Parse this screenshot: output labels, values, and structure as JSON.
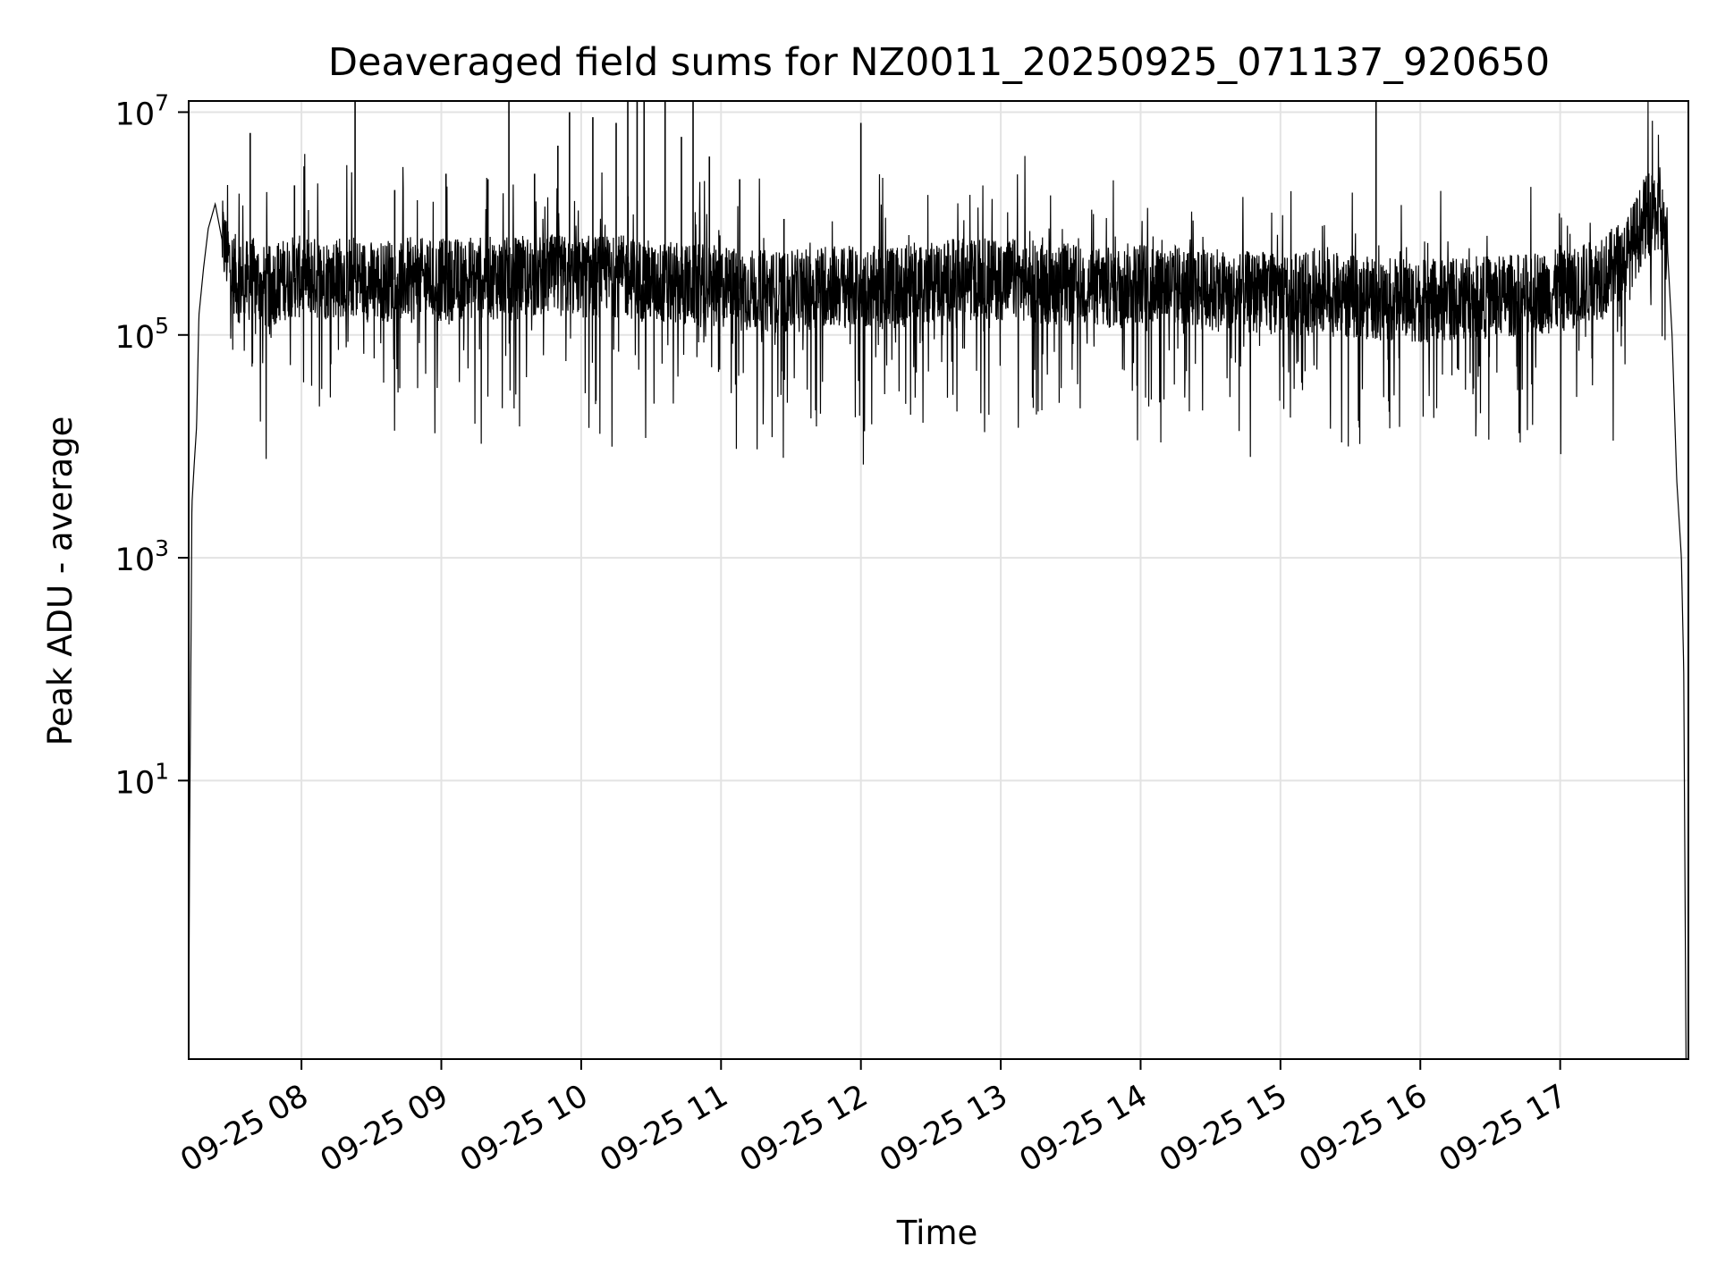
{
  "chart_data": {
    "type": "line",
    "title": "Deaveraged field sums for NZ0011_20250925_071137_920650",
    "xlabel": "Time",
    "ylabel": "Peak ADU - average",
    "yscale": "log",
    "grid": true,
    "line_color": "#000000",
    "xlim": [
      "2025-09-25T07:11:37",
      "2025-09-25T17:55:00"
    ],
    "ylim_exp10": [
      -1.5,
      7.1
    ],
    "x_ticks": [
      {
        "t": "2025-09-25T08:00",
        "label": "09-25 08"
      },
      {
        "t": "2025-09-25T09:00",
        "label": "09-25 09"
      },
      {
        "t": "2025-09-25T10:00",
        "label": "09-25 10"
      },
      {
        "t": "2025-09-25T11:00",
        "label": "09-25 11"
      },
      {
        "t": "2025-09-25T12:00",
        "label": "09-25 12"
      },
      {
        "t": "2025-09-25T13:00",
        "label": "09-25 13"
      },
      {
        "t": "2025-09-25T14:00",
        "label": "09-25 14"
      },
      {
        "t": "2025-09-25T15:00",
        "label": "09-25 15"
      },
      {
        "t": "2025-09-25T16:00",
        "label": "09-25 16"
      },
      {
        "t": "2025-09-25T17:00",
        "label": "09-25 17"
      }
    ],
    "y_ticks": [
      {
        "value": 10,
        "base": "10",
        "exp": "1"
      },
      {
        "value": 1000,
        "base": "10",
        "exp": "3"
      },
      {
        "value": 100000,
        "base": "10",
        "exp": "5"
      },
      {
        "value": 10000000,
        "base": "10",
        "exp": "7"
      }
    ],
    "series": [
      {
        "x": [
          "2025-09-25T07:11:37",
          "2025-09-25T07:12:00",
          "2025-09-25T07:12:30",
          "2025-09-25T07:13:00",
          "2025-09-25T07:14:00",
          "2025-09-25T07:15:00",
          "2025-09-25T07:16:00",
          "2025-09-25T07:18:00",
          "2025-09-25T07:20:00",
          "2025-09-25T07:23:00",
          "2025-09-25T07:26:00",
          "2025-09-25T07:30:00",
          "2025-09-25T07:33:00",
          "2025-09-25T07:36:00",
          "2025-09-25T07:40:00",
          "2025-09-25T07:45:00",
          "2025-09-25T07:50:00",
          "2025-09-25T07:55:00",
          "2025-09-25T08:00:00",
          "2025-09-25T08:10:00",
          "2025-09-25T08:20:00",
          "2025-09-25T08:30:00",
          "2025-09-25T08:45:00",
          "2025-09-25T09:00:00",
          "2025-09-25T09:15:00",
          "2025-09-25T09:30:00",
          "2025-09-25T09:45:00",
          "2025-09-25T10:00:00",
          "2025-09-25T10:15:00",
          "2025-09-25T10:30:00",
          "2025-09-25T10:45:00",
          "2025-09-25T11:00:00",
          "2025-09-25T11:15:00",
          "2025-09-25T11:30:00",
          "2025-09-25T11:45:00",
          "2025-09-25T12:00:00",
          "2025-09-25T12:15:00",
          "2025-09-25T12:30:00",
          "2025-09-25T12:45:00",
          "2025-09-25T13:00:00",
          "2025-09-25T13:15:00",
          "2025-09-25T13:30:00",
          "2025-09-25T13:45:00",
          "2025-09-25T14:00:00",
          "2025-09-25T14:15:00",
          "2025-09-25T14:30:00",
          "2025-09-25T14:45:00",
          "2025-09-25T15:00:00",
          "2025-09-25T15:15:00",
          "2025-09-25T15:30:00",
          "2025-09-25T15:45:00",
          "2025-09-25T16:00:00",
          "2025-09-25T16:15:00",
          "2025-09-25T16:30:00",
          "2025-09-25T16:45:00",
          "2025-09-25T17:00:00",
          "2025-09-25T17:10:00",
          "2025-09-25T17:20:00",
          "2025-09-25T17:28:00",
          "2025-09-25T17:32:00",
          "2025-09-25T17:36:00",
          "2025-09-25T17:40:00",
          "2025-09-25T17:43:00",
          "2025-09-25T17:46:00",
          "2025-09-25T17:48:00",
          "2025-09-25T17:50:00",
          "2025-09-25T17:52:00",
          "2025-09-25T17:53:00",
          "2025-09-25T17:54:00"
        ],
        "y": [
          0.03,
          3,
          80,
          3000,
          7000,
          15000,
          150000,
          400000,
          900000,
          1500000,
          700000,
          400000,
          300000,
          300000,
          320000,
          260000,
          300000,
          330000,
          330000,
          320000,
          340000,
          300000,
          320000,
          310000,
          330000,
          320000,
          340000,
          330000,
          340000,
          300000,
          280000,
          270000,
          250000,
          240000,
          280000,
          260000,
          270000,
          300000,
          320000,
          320000,
          300000,
          280000,
          260000,
          300000,
          280000,
          250000,
          240000,
          240000,
          230000,
          220000,
          210000,
          200000,
          210000,
          220000,
          230000,
          250000,
          280000,
          350000,
          500000,
          700000,
          1100000,
          1300000,
          1200000,
          600000,
          100000,
          5000,
          1000,
          100,
          0.03
        ]
      }
    ],
    "spikes": [
      {
        "x": "2025-09-25T07:38:00",
        "y": 6500000
      },
      {
        "x": "2025-09-25T07:57:00",
        "y": 2200000
      },
      {
        "x": "2025-09-25T08:23:00",
        "y": 14000000
      },
      {
        "x": "2025-09-25T08:40:00",
        "y": 2000000
      },
      {
        "x": "2025-09-25T09:02:00",
        "y": 2800000
      },
      {
        "x": "2025-09-25T09:20:00",
        "y": 2500000
      },
      {
        "x": "2025-09-25T09:29:00",
        "y": 20000000
      },
      {
        "x": "2025-09-25T09:40:00",
        "y": 2800000
      },
      {
        "x": "2025-09-25T09:50:00",
        "y": 5000000
      },
      {
        "x": "2025-09-25T09:55:00",
        "y": 10000000
      },
      {
        "x": "2025-09-25T10:05:00",
        "y": 9000000
      },
      {
        "x": "2025-09-25T10:15:00",
        "y": 8000000
      },
      {
        "x": "2025-09-25T10:20:00",
        "y": 25000000
      },
      {
        "x": "2025-09-25T10:24:00",
        "y": 17000000
      },
      {
        "x": "2025-09-25T10:27:00",
        "y": 45000000
      },
      {
        "x": "2025-09-25T10:36:00",
        "y": 17000000
      },
      {
        "x": "2025-09-25T10:43:00",
        "y": 6000000
      },
      {
        "x": "2025-09-25T10:48:00",
        "y": 13000000
      },
      {
        "x": "2025-09-25T10:55:00",
        "y": 4000000
      },
      {
        "x": "2025-09-25T11:08:00",
        "y": 2500000
      },
      {
        "x": "2025-09-25T11:27:00",
        "y": 1100000
      },
      {
        "x": "2025-09-25T12:00:00",
        "y": 8000000
      },
      {
        "x": "2025-09-25T15:41:00",
        "y": 50000000
      }
    ]
  }
}
